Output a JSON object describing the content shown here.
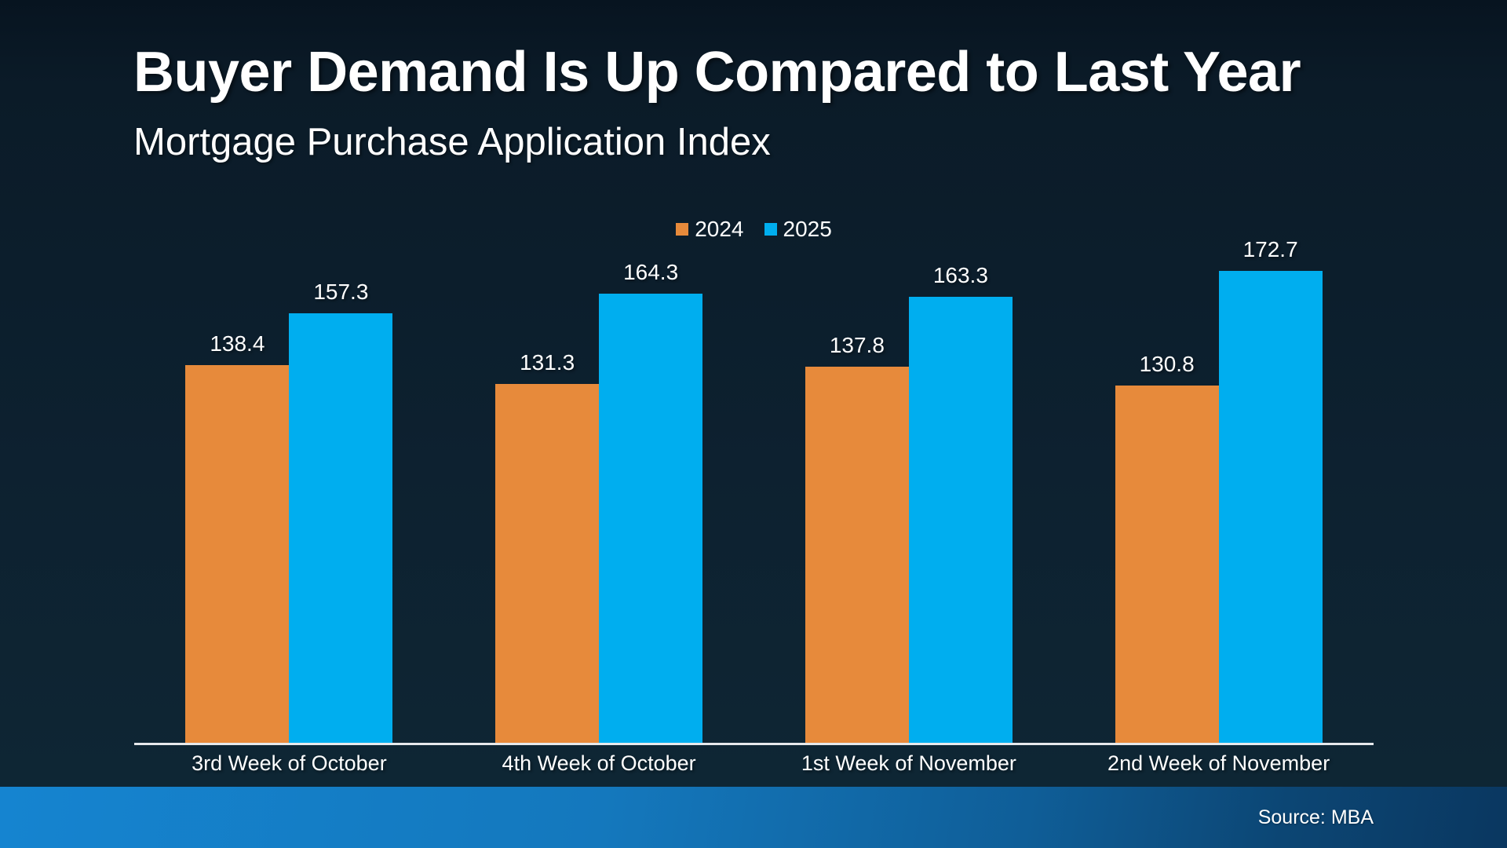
{
  "slide": {
    "title": "Buyer Demand Is Up Compared to Last Year",
    "subtitle": "Mortgage Purchase Application Index",
    "source": "Source: MBA"
  },
  "chart_data": {
    "type": "bar",
    "title": "Buyer Demand Is Up Compared to Last Year",
    "subtitle": "Mortgage Purchase Application Index",
    "categories": [
      "3rd Week of October",
      "4th Week of October",
      "1st Week of November",
      "2nd Week of November"
    ],
    "series": [
      {
        "name": "2024",
        "color": "#E78A3B",
        "values": [
          138.4,
          131.3,
          137.8,
          130.8
        ]
      },
      {
        "name": "2025",
        "color": "#00AEEF",
        "values": [
          157.3,
          164.3,
          163.3,
          172.7
        ]
      }
    ],
    "ylim": [
      0,
      180
    ],
    "ylabel": "",
    "xlabel": "",
    "grid": false,
    "legend_position": "top-center",
    "value_labels": true,
    "value_label_decimals": 1,
    "baseline_axis": true,
    "source": "Source: MBA"
  },
  "colors": {
    "background_top": "#071420",
    "background_bottom": "#0E2634",
    "series_2024": "#E78A3B",
    "series_2025": "#00AEEF",
    "axis_line": "#E6E9EC",
    "text": "#FFFFFF",
    "footer_gradient_left": "#1584D0",
    "footer_gradient_right": "#0A3760"
  }
}
